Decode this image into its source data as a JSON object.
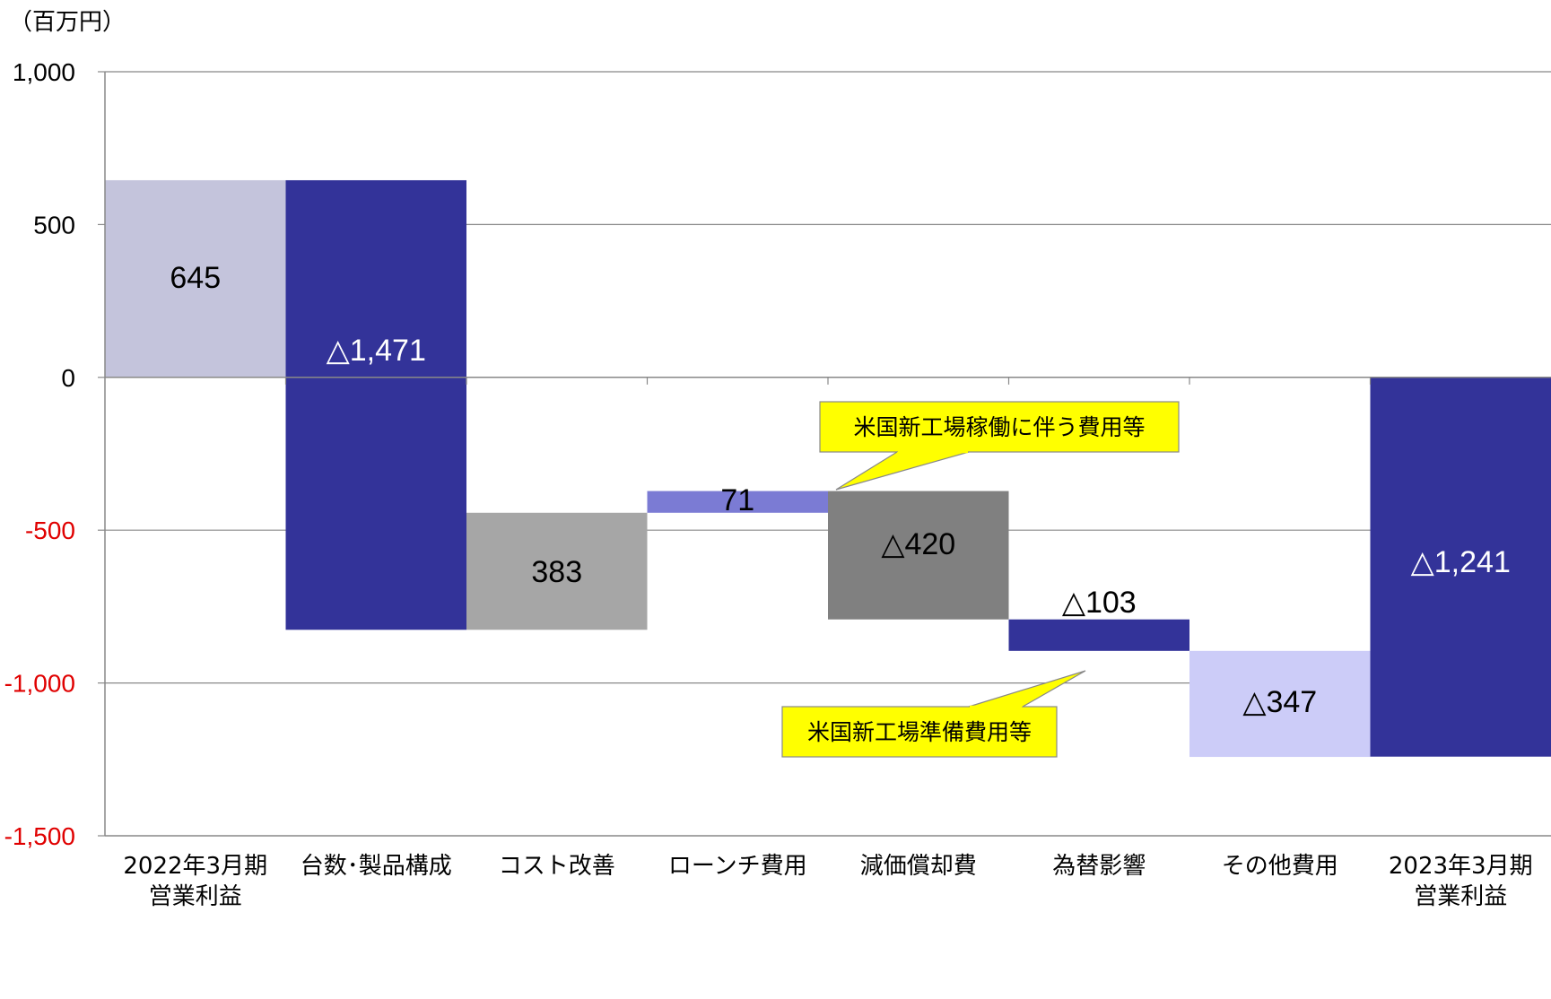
{
  "chart_data": {
    "type": "waterfall",
    "unit_label": "（百万円）",
    "ylim": [
      -1500,
      1000
    ],
    "yticks": [
      {
        "value": 1000,
        "label": "1,000",
        "color": "#000000"
      },
      {
        "value": 500,
        "label": "500",
        "color": "#000000"
      },
      {
        "value": 0,
        "label": "0",
        "color": "#000000"
      },
      {
        "value": -500,
        "label": "-500",
        "color": "#e00000"
      },
      {
        "value": -1000,
        "label": "-1,000",
        "color": "#e00000"
      },
      {
        "value": -1500,
        "label": "-1,500",
        "color": "#e00000"
      }
    ],
    "grid": true,
    "categories": [
      {
        "lines": [
          "2022年3月期",
          "営業利益"
        ]
      },
      {
        "lines": [
          "台数･製品構成"
        ]
      },
      {
        "lines": [
          "コスト改善"
        ]
      },
      {
        "lines": [
          "ローンチ費用"
        ]
      },
      {
        "lines": [
          "減価償却費"
        ]
      },
      {
        "lines": [
          "為替影響"
        ]
      },
      {
        "lines": [
          "その他費用"
        ]
      },
      {
        "lines": [
          "2023年3月期",
          "営業利益"
        ]
      }
    ],
    "bars": [
      {
        "start": 0,
        "end": 645,
        "value": 645,
        "label": "645",
        "color": "#c4c4dc",
        "label_color": "#000000"
      },
      {
        "start": 645,
        "end": -826,
        "value": -1471,
        "label": "△1,471",
        "color": "#333399",
        "label_color": "#ffffff"
      },
      {
        "start": -826,
        "end": -443,
        "value": 383,
        "label": "383",
        "color": "#a6a6a6",
        "label_color": "#000000"
      },
      {
        "start": -443,
        "end": -372,
        "value": 71,
        "label": "71",
        "color": "#7b7bd4",
        "label_color": "#000000"
      },
      {
        "start": -372,
        "end": -792,
        "value": -420,
        "label": "△420",
        "color": "#808080",
        "label_color": "#000000"
      },
      {
        "start": -792,
        "end": -895,
        "value": -103,
        "label": "△103",
        "color": "#333399",
        "label_color": "#000000"
      },
      {
        "start": -895,
        "end": -1242,
        "value": -347,
        "label": "△347",
        "color": "#ccccf8",
        "label_color": "#000000"
      },
      {
        "start": 0,
        "end": -1241,
        "value": -1241,
        "label": "△1,241",
        "color": "#333399",
        "label_color": "#ffffff"
      }
    ],
    "callouts": [
      {
        "text": "米国新工場稼働に伴う費用等",
        "bar_index": 4,
        "color": "#ffff00"
      },
      {
        "text": "米国新工場準備費用等",
        "bar_index": 6,
        "color": "#ffff00"
      }
    ]
  }
}
